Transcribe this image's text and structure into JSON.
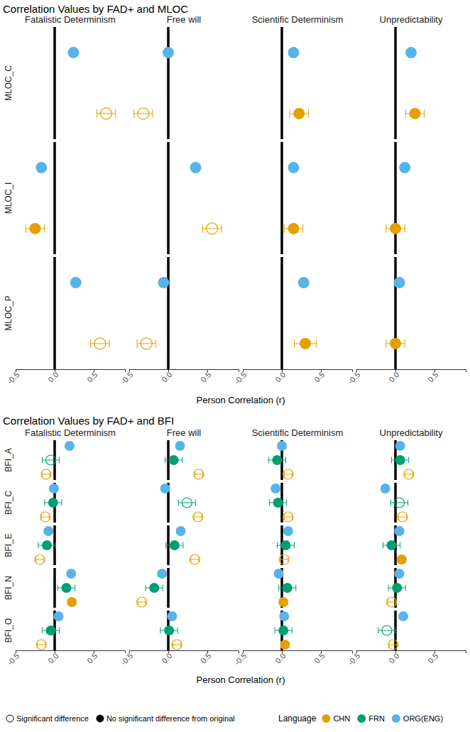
{
  "chart_data": [
    {
      "type": "dot",
      "title": "Correlation Values by FAD+ and MLOC",
      "x_label": "Person Correlation (r)",
      "columns": [
        "Fatalistic Determinism",
        "Free will",
        "Scientific Determinism",
        "Unpredictability"
      ],
      "rows": [
        "MLOC_C",
        "MLOC_I",
        "MLOC_P"
      ],
      "xlim": [
        -0.5,
        0.9
      ],
      "xticks": [
        -0.5,
        {
          "value": 0,
          "label": "0.0"
        },
        0.5
      ],
      "ref_line": 0,
      "series": [
        {
          "color": "#56B4E9",
          "values": [
            [
              0.24,
              0.0,
              0.15,
              0.2
            ],
            [
              -0.17,
              0.35,
              0.15,
              0.12
            ],
            [
              0.27,
              -0.06,
              0.28,
              0.05
            ]
          ]
        },
        {
          "color": "#E69F00",
          "values": [
            [
              0.66,
              -0.32,
              0.22,
              0.25
            ],
            [
              -0.25,
              0.56,
              0.15,
              0.0
            ],
            [
              0.58,
              -0.28,
              0.3,
              0.0
            ]
          ],
          "errors": [
            [
              0.12,
              0.12,
              0.12,
              0.12
            ],
            [
              0.12,
              0.12,
              0.12,
              0.12
            ],
            [
              0.12,
              0.12,
              0.14,
              0.12
            ]
          ],
          "significant": [
            [
              true,
              true,
              false,
              false
            ],
            [
              false,
              true,
              false,
              false
            ],
            [
              true,
              true,
              false,
              false
            ]
          ]
        }
      ]
    },
    {
      "type": "dot",
      "title": "Correlation Values by FAD+ and BFI",
      "x_label": "Person Correlation (r)",
      "columns": [
        "Fatalistic Determinism",
        "Free will",
        "Scientific Determinism",
        "Unpredictability"
      ],
      "rows": [
        "BFI_A",
        "BFI_C",
        "BFI_E",
        "BFI_N",
        "BFI_O"
      ],
      "xlim": [
        -0.5,
        0.9
      ],
      "xticks": [
        -0.5,
        {
          "value": 0,
          "label": "0.0"
        },
        0.5
      ],
      "ref_line": 0,
      "legend_title": "Language",
      "shape_legend": [
        "Significant difference",
        "No significant difference from original"
      ],
      "series": [
        {
          "name": "ORG(ENG)",
          "color": "#56B4E9",
          "values": [
            [
              0.19,
              0.15,
              0.0,
              0.06
            ],
            [
              -0.01,
              -0.04,
              -0.08,
              -0.13
            ],
            [
              -0.08,
              0.16,
              0.08,
              0.05
            ],
            [
              0.21,
              -0.08,
              -0.04,
              0.05
            ],
            [
              0.05,
              0.05,
              0.03,
              0.1
            ]
          ]
        },
        {
          "name": "FRN",
          "color": "#009E73",
          "values": [
            [
              -0.05,
              0.07,
              -0.06,
              0.06
            ],
            [
              -0.02,
              0.24,
              -0.05,
              0.05
            ],
            [
              -0.1,
              0.08,
              0.05,
              -0.05
            ],
            [
              0.15,
              -0.18,
              0.07,
              0.02
            ],
            [
              -0.05,
              0.01,
              0.02,
              -0.11
            ]
          ],
          "errors": [
            [
              0.11,
              0.11,
              0.11,
              0.11
            ],
            [
              0.11,
              0.11,
              0.11,
              0.11
            ],
            [
              0.11,
              0.11,
              0.11,
              0.11
            ],
            [
              0.11,
              0.11,
              0.11,
              0.11
            ],
            [
              0.11,
              0.11,
              0.11,
              0.11
            ]
          ],
          "significant": [
            [
              true,
              false,
              false,
              false
            ],
            [
              false,
              true,
              false,
              true
            ],
            [
              false,
              false,
              false,
              false
            ],
            [
              false,
              false,
              false,
              false
            ],
            [
              false,
              false,
              false,
              true
            ]
          ]
        },
        {
          "name": "CHN",
          "color": "#E69F00",
          "values": [
            [
              -0.11,
              0.39,
              0.08,
              0.17
            ],
            [
              -0.12,
              0.38,
              0.08,
              0.09
            ],
            [
              -0.19,
              0.34,
              0.03,
              0.08
            ],
            [
              0.22,
              -0.34,
              0.02,
              -0.05
            ],
            [
              -0.17,
              0.11,
              0.04,
              -0.03
            ]
          ],
          "errors": [
            [
              0.05,
              0.05,
              0.05,
              0.05
            ],
            [
              0.05,
              0.05,
              0.05,
              0.05
            ],
            [
              0.05,
              0.05,
              0.05,
              0.05
            ],
            [
              0.05,
              0.05,
              0.05,
              0.05
            ],
            [
              0.05,
              0.05,
              0.05,
              0.05
            ]
          ],
          "significant": [
            [
              true,
              true,
              true,
              true
            ],
            [
              true,
              true,
              true,
              true
            ],
            [
              true,
              true,
              true,
              false
            ],
            [
              false,
              true,
              false,
              true
            ],
            [
              true,
              true,
              false,
              true
            ]
          ]
        }
      ]
    }
  ]
}
